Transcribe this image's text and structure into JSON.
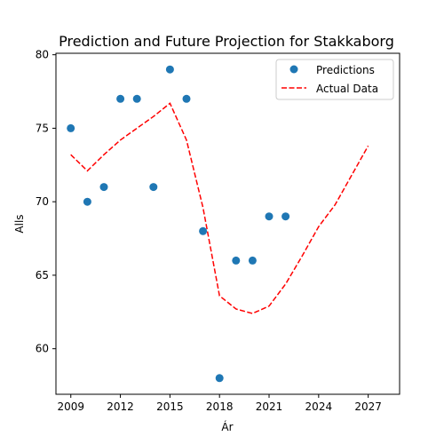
{
  "chart_data": {
    "type": "scatter",
    "title": "Prediction and Future Projection for Stakkaborg",
    "xlabel": "Ár",
    "ylabel": "Alls",
    "xlim": [
      2008.1,
      2028.9
    ],
    "ylim": [
      56.9,
      80.1
    ],
    "xticks": [
      2009,
      2012,
      2015,
      2018,
      2021,
      2024,
      2027
    ],
    "yticks": [
      60,
      65,
      70,
      75,
      80
    ],
    "grid": false,
    "legend_position": "upper right",
    "series": [
      {
        "name": "Predictions",
        "kind": "scatter",
        "color": "#1f77b4",
        "x": [
          2009,
          2010,
          2011,
          2012,
          2013,
          2014,
          2015,
          2016,
          2017,
          2018,
          2019,
          2020,
          2021,
          2022
        ],
        "y": [
          75,
          70,
          71,
          77,
          77,
          71,
          79,
          77,
          68,
          58,
          66,
          66,
          69,
          69
        ]
      },
      {
        "name": "Actual Data",
        "kind": "line",
        "style": "dashed",
        "color": "#ff0000",
        "x": [
          2009,
          2010,
          2011,
          2012,
          2013,
          2014,
          2015,
          2016,
          2017,
          2018,
          2019,
          2020,
          2021,
          2022,
          2023,
          2024,
          2025,
          2026,
          2027
        ],
        "y": [
          73.2,
          72.1,
          73.2,
          74.2,
          75.0,
          75.8,
          76.7,
          74.2,
          69.6,
          63.6,
          62.7,
          62.4,
          62.9,
          64.4,
          66.3,
          68.3,
          69.8,
          71.8,
          73.8
        ]
      }
    ]
  }
}
